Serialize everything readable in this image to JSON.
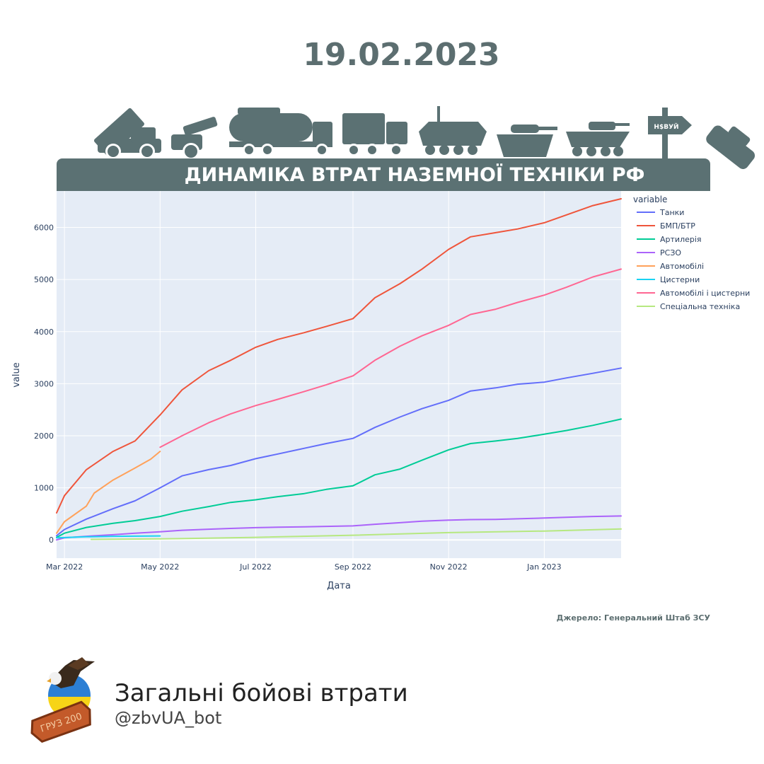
{
  "header": {
    "date": "19.02.2023",
    "banner_title": "ДИНАМІКА ВТРАТ НАЗЕМНОЇ ТЕХНІКИ РФ",
    "sign_text": "Н$ВУЙ",
    "icons": [
      "rocket-launcher-truck-icon",
      "howitzer-icon",
      "fuel-tanker-truck-icon",
      "mlrs-truck-icon",
      "apc-icon",
      "tank-icon",
      "ifv-icon",
      "road-sign-icon",
      "wrecked-tank-icon"
    ]
  },
  "source_text": "Джерело: Генеральний Штаб ЗСУ",
  "brand": {
    "name": "Загальні бойові втрати",
    "handle": "@zbvUA_bot",
    "coffin_text": "ГРУЗ 200"
  },
  "colors": {
    "header_slate": "#5b7173",
    "plot_background": "#e5ecf6",
    "axis_text": "#2a3f5f"
  },
  "chart_data": {
    "type": "line",
    "xlabel": "Дата",
    "ylabel": "value",
    "legend_title": "variable",
    "legend_position": "right",
    "grid": true,
    "x_range": [
      "2022-02-24",
      "2023-02-19"
    ],
    "y_range": [
      -350,
      6700
    ],
    "x_ticks": [
      {
        "date": "2022-03-01",
        "label": "Mar 2022"
      },
      {
        "date": "2022-05-01",
        "label": "May 2022"
      },
      {
        "date": "2022-07-01",
        "label": "Jul 2022"
      },
      {
        "date": "2022-09-01",
        "label": "Sep 2022"
      },
      {
        "date": "2022-11-01",
        "label": "Nov 2022"
      },
      {
        "date": "2023-01-01",
        "label": "Jan 2023"
      }
    ],
    "y_ticks": [
      0,
      1000,
      2000,
      3000,
      4000,
      5000,
      6000
    ],
    "series": [
      {
        "name": "Танки",
        "color": "#636efa",
        "points": [
          [
            "2022-02-24",
            80
          ],
          [
            "2022-03-01",
            200
          ],
          [
            "2022-03-15",
            400
          ],
          [
            "2022-04-01",
            600
          ],
          [
            "2022-04-15",
            750
          ],
          [
            "2022-05-01",
            1000
          ],
          [
            "2022-05-15",
            1230
          ],
          [
            "2022-06-01",
            1350
          ],
          [
            "2022-06-15",
            1430
          ],
          [
            "2022-07-01",
            1560
          ],
          [
            "2022-07-15",
            1650
          ],
          [
            "2022-08-01",
            1760
          ],
          [
            "2022-08-15",
            1850
          ],
          [
            "2022-09-01",
            1950
          ],
          [
            "2022-09-15",
            2160
          ],
          [
            "2022-10-01",
            2360
          ],
          [
            "2022-10-15",
            2520
          ],
          [
            "2022-11-01",
            2680
          ],
          [
            "2022-11-15",
            2860
          ],
          [
            "2022-12-01",
            2920
          ],
          [
            "2022-12-15",
            2990
          ],
          [
            "2023-01-01",
            3030
          ],
          [
            "2023-01-15",
            3110
          ],
          [
            "2023-02-01",
            3200
          ],
          [
            "2023-02-19",
            3300
          ]
        ]
      },
      {
        "name": "БМП/БТР",
        "color": "#ef553b",
        "points": [
          [
            "2022-02-24",
            520
          ],
          [
            "2022-03-01",
            850
          ],
          [
            "2022-03-15",
            1350
          ],
          [
            "2022-04-01",
            1700
          ],
          [
            "2022-04-15",
            1900
          ],
          [
            "2022-05-01",
            2400
          ],
          [
            "2022-05-15",
            2880
          ],
          [
            "2022-06-01",
            3250
          ],
          [
            "2022-06-15",
            3450
          ],
          [
            "2022-07-01",
            3700
          ],
          [
            "2022-07-15",
            3850
          ],
          [
            "2022-08-01",
            3980
          ],
          [
            "2022-08-15",
            4100
          ],
          [
            "2022-09-01",
            4250
          ],
          [
            "2022-09-15",
            4650
          ],
          [
            "2022-10-01",
            4920
          ],
          [
            "2022-10-15",
            5200
          ],
          [
            "2022-11-01",
            5580
          ],
          [
            "2022-11-15",
            5820
          ],
          [
            "2022-12-01",
            5900
          ],
          [
            "2022-12-15",
            5970
          ],
          [
            "2023-01-01",
            6090
          ],
          [
            "2023-01-15",
            6240
          ],
          [
            "2023-02-01",
            6420
          ],
          [
            "2023-02-19",
            6550
          ]
        ]
      },
      {
        "name": "Артилерія",
        "color": "#00cc96",
        "points": [
          [
            "2022-02-24",
            50
          ],
          [
            "2022-03-01",
            130
          ],
          [
            "2022-03-15",
            240
          ],
          [
            "2022-04-01",
            320
          ],
          [
            "2022-04-15",
            370
          ],
          [
            "2022-05-01",
            450
          ],
          [
            "2022-05-15",
            550
          ],
          [
            "2022-06-01",
            640
          ],
          [
            "2022-06-15",
            720
          ],
          [
            "2022-07-01",
            770
          ],
          [
            "2022-07-15",
            830
          ],
          [
            "2022-08-01",
            890
          ],
          [
            "2022-08-15",
            970
          ],
          [
            "2022-09-01",
            1040
          ],
          [
            "2022-09-15",
            1250
          ],
          [
            "2022-10-01",
            1360
          ],
          [
            "2022-10-15",
            1530
          ],
          [
            "2022-11-01",
            1730
          ],
          [
            "2022-11-15",
            1850
          ],
          [
            "2022-12-01",
            1900
          ],
          [
            "2022-12-15",
            1950
          ],
          [
            "2023-01-01",
            2030
          ],
          [
            "2023-01-15",
            2100
          ],
          [
            "2023-02-01",
            2200
          ],
          [
            "2023-02-19",
            2320
          ]
        ]
      },
      {
        "name": "РСЗО",
        "color": "#ab63fa",
        "points": [
          [
            "2022-02-24",
            0
          ],
          [
            "2022-03-01",
            40
          ],
          [
            "2022-03-15",
            70
          ],
          [
            "2022-04-01",
            100
          ],
          [
            "2022-04-15",
            130
          ],
          [
            "2022-05-01",
            155
          ],
          [
            "2022-05-15",
            185
          ],
          [
            "2022-06-01",
            205
          ],
          [
            "2022-06-15",
            220
          ],
          [
            "2022-07-01",
            235
          ],
          [
            "2022-07-15",
            245
          ],
          [
            "2022-08-01",
            250
          ],
          [
            "2022-08-15",
            260
          ],
          [
            "2022-09-01",
            270
          ],
          [
            "2022-09-15",
            300
          ],
          [
            "2022-10-01",
            330
          ],
          [
            "2022-10-15",
            360
          ],
          [
            "2022-11-01",
            380
          ],
          [
            "2022-11-15",
            390
          ],
          [
            "2022-12-01",
            395
          ],
          [
            "2022-12-15",
            405
          ],
          [
            "2023-01-01",
            420
          ],
          [
            "2023-01-15",
            435
          ],
          [
            "2023-02-01",
            450
          ],
          [
            "2023-02-19",
            460
          ]
        ]
      },
      {
        "name": "Автомобілі",
        "color": "#ffa15a",
        "points": [
          [
            "2022-02-24",
            130
          ],
          [
            "2022-03-01",
            350
          ],
          [
            "2022-03-15",
            650
          ],
          [
            "2022-03-20",
            900
          ],
          [
            "2022-04-01",
            1150
          ],
          [
            "2022-04-15",
            1380
          ],
          [
            "2022-04-25",
            1550
          ],
          [
            "2022-05-01",
            1700
          ]
        ]
      },
      {
        "name": "Цистерни",
        "color": "#19d3f3",
        "points": [
          [
            "2022-02-24",
            40
          ],
          [
            "2022-03-15",
            60
          ],
          [
            "2022-04-01",
            70
          ],
          [
            "2022-05-01",
            76
          ]
        ]
      },
      {
        "name": "Автомобілі і цистерни",
        "color": "#ff6692",
        "points": [
          [
            "2022-05-01",
            1780
          ],
          [
            "2022-05-15",
            2000
          ],
          [
            "2022-06-01",
            2250
          ],
          [
            "2022-06-15",
            2420
          ],
          [
            "2022-07-01",
            2580
          ],
          [
            "2022-07-15",
            2700
          ],
          [
            "2022-08-01",
            2850
          ],
          [
            "2022-08-15",
            2980
          ],
          [
            "2022-09-01",
            3150
          ],
          [
            "2022-09-15",
            3450
          ],
          [
            "2022-10-01",
            3720
          ],
          [
            "2022-10-15",
            3920
          ],
          [
            "2022-11-01",
            4120
          ],
          [
            "2022-11-15",
            4330
          ],
          [
            "2022-12-01",
            4430
          ],
          [
            "2022-12-15",
            4560
          ],
          [
            "2023-01-01",
            4700
          ],
          [
            "2023-01-15",
            4850
          ],
          [
            "2023-02-01",
            5050
          ],
          [
            "2023-02-19",
            5200
          ]
        ]
      },
      {
        "name": "Спеціальна техніка",
        "color": "#b6e880",
        "points": [
          [
            "2022-03-18",
            10
          ],
          [
            "2022-05-01",
            20
          ],
          [
            "2022-07-01",
            50
          ],
          [
            "2022-09-01",
            90
          ],
          [
            "2022-11-01",
            140
          ],
          [
            "2023-01-01",
            170
          ],
          [
            "2023-02-19",
            210
          ]
        ]
      }
    ]
  }
}
